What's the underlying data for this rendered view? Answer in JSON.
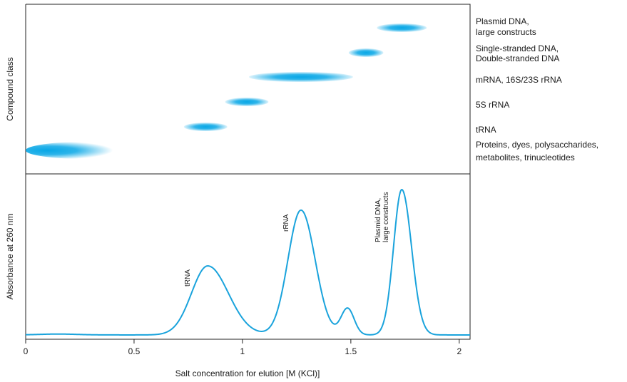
{
  "colors": {
    "band": "#08a7e6",
    "trace": "#1aa3dc",
    "axis": "#222222"
  },
  "chart_data": [
    {
      "type": "scatter",
      "panel": "compound-class",
      "ylabel": "Compound class",
      "x_range": [
        0,
        2.05
      ],
      "bands": [
        {
          "label": "Proteins, dyes, polysaccharides, metabolites, trinucleotides",
          "label_lines": [
            "Proteins, dyes, polysaccharides,",
            "metabolites, trinucleotides"
          ],
          "x_start": 0.0,
          "x_end": 0.55,
          "x_center": 0.1
        },
        {
          "label": "tRNA",
          "label_lines": [
            "tRNA"
          ],
          "x_start": 0.73,
          "x_end": 0.93,
          "x_center": 0.83
        },
        {
          "label": "5S rRNA",
          "label_lines": [
            "5S rRNA"
          ],
          "x_start": 0.92,
          "x_end": 1.12,
          "x_center": 1.02
        },
        {
          "label": "mRNA, 16S/23S rRNA",
          "label_lines": [
            "mRNA, 16S/23S rRNA"
          ],
          "x_start": 1.03,
          "x_end": 1.51,
          "x_center": 1.27
        },
        {
          "label": "Single-stranded DNA, Double-stranded DNA",
          "label_lines": [
            "Single-stranded DNA,",
            "Double-stranded DNA"
          ],
          "x_start": 1.49,
          "x_end": 1.65,
          "x_center": 1.57
        },
        {
          "label": "Plasmid DNA, large constructs",
          "label_lines": [
            "Plasmid DNA,",
            "large constructs"
          ],
          "x_start": 1.62,
          "x_end": 1.85,
          "x_center": 1.735
        }
      ]
    },
    {
      "type": "line",
      "panel": "absorbance",
      "ylabel": "Absorbance at 260 nm",
      "xlabel": "Salt concentration for elution [M (KCl)]",
      "xlim": [
        0,
        2.05
      ],
      "ylim": [
        0,
        1
      ],
      "x_ticks": [
        0,
        0.5,
        1,
        1.5,
        2
      ],
      "x_tick_labels": [
        "0",
        "0.5",
        "1",
        "1.5",
        "2"
      ],
      "baseline": 0.01,
      "peaks": [
        {
          "label": "tRNA",
          "label_lines": [
            "tRNA"
          ],
          "x": 0.84,
          "height": 0.48,
          "width_left": 0.075,
          "width_right": 0.095
        },
        {
          "label": "rRNA",
          "label_lines": [
            "rRNA"
          ],
          "x": 1.27,
          "height": 0.86,
          "width_left": 0.06,
          "width_right": 0.065
        },
        {
          "label": "",
          "label_lines": [],
          "x": 1.485,
          "height": 0.19,
          "width_left": 0.03,
          "width_right": 0.03
        },
        {
          "label": "Plasmid DNA, large constructs",
          "label_lines": [
            "Plasmid DNA,",
            "large constructs"
          ],
          "x": 1.735,
          "height": 1.0,
          "width_left": 0.038,
          "width_right": 0.045
        }
      ]
    }
  ]
}
